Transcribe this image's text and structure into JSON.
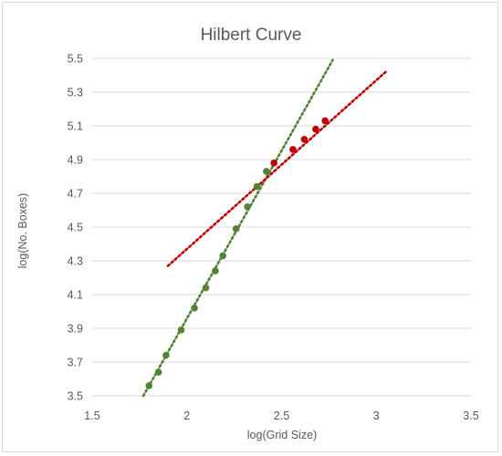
{
  "chart_data": {
    "type": "scatter",
    "title": "Hilbert Curve",
    "xlabel": "log(Grid Size)",
    "ylabel": "log(No. Boxes)",
    "xlim": [
      1.5,
      3.5
    ],
    "ylim": [
      3.5,
      5.5
    ],
    "xticks": [
      "1.5",
      "2",
      "2.5",
      "3",
      "3.5"
    ],
    "yticks": [
      "3.5",
      "3.7",
      "3.9",
      "4.1",
      "4.3",
      "4.5",
      "4.7",
      "4.9",
      "5.1",
      "5.3",
      "5.5"
    ],
    "grid": "horizontal",
    "legend": "none",
    "series": [
      {
        "color": "#548235",
        "points": [
          [
            1.8,
            3.56
          ],
          [
            1.85,
            3.64
          ],
          [
            1.89,
            3.74
          ],
          [
            1.97,
            3.89
          ],
          [
            2.04,
            4.02
          ],
          [
            2.1,
            4.14
          ],
          [
            2.15,
            4.24
          ],
          [
            2.19,
            4.33
          ],
          [
            2.26,
            4.49
          ],
          [
            2.32,
            4.62
          ],
          [
            2.37,
            4.74
          ],
          [
            2.42,
            4.83
          ]
        ],
        "trendline": {
          "color": "#548235",
          "from": [
            1.77,
            3.5
          ],
          "to": [
            2.77,
            5.49
          ]
        }
      },
      {
        "color": "#c00000",
        "points": [
          [
            2.46,
            4.88
          ],
          [
            2.56,
            4.96
          ],
          [
            2.62,
            5.02
          ],
          [
            2.68,
            5.08
          ],
          [
            2.73,
            5.13
          ]
        ],
        "trendline": {
          "color": "#c00000",
          "from": [
            1.9,
            4.27
          ],
          "to": [
            3.05,
            5.42
          ]
        }
      }
    ]
  }
}
